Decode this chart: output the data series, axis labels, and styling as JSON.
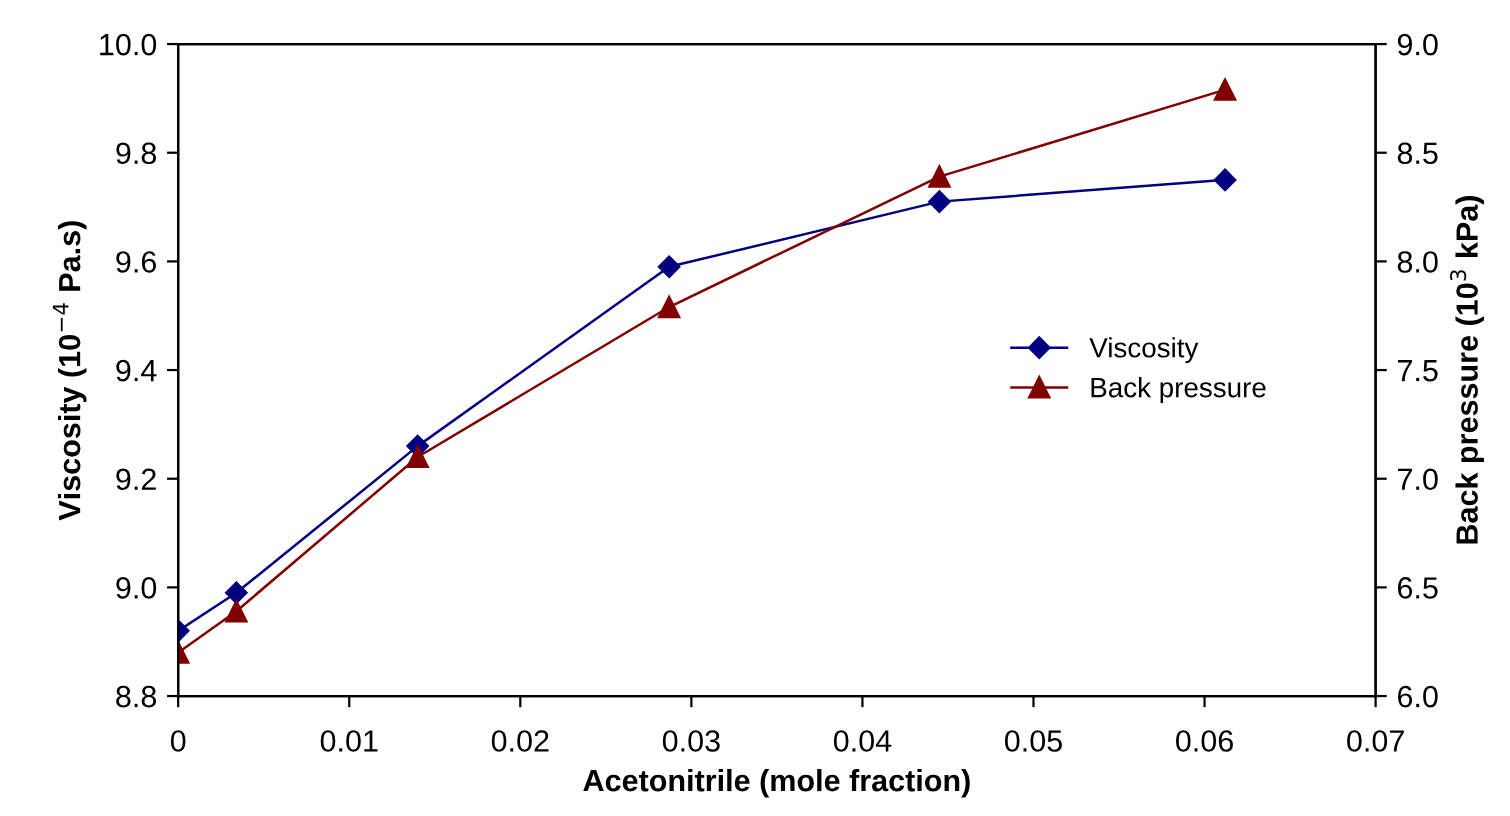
{
  "chart_data": {
    "type": "line",
    "xlabel": "Acetonitrile (mole fraction)",
    "ylabel": "Viscosity (10$^{−4}$ Pa.s)",
    "y2label": "Back pressure (10$^{3}$ kPa)",
    "series": [
      {
        "name": "Viscosity",
        "color": "#000080",
        "marker": "diamond",
        "x": [
          0,
          0.0034,
          0.014,
          0.0287,
          0.0445,
          0.0612
        ],
        "values": [
          8.92,
          8.99,
          9.26,
          9.59,
          9.71,
          9.75
        ]
      },
      {
        "name": "Back pressure",
        "color": "#800000",
        "marker": "triangle",
        "axis": "y2",
        "x": [
          0,
          0.0034,
          0.014,
          0.0287,
          0.0445,
          0.0612
        ],
        "values": [
          6.2,
          6.39,
          7.1,
          7.79,
          8.39,
          8.79
        ]
      }
    ],
    "xlim": [
      0,
      0.07
    ],
    "xticks": [
      0,
      0.01,
      0.02,
      0.03,
      0.04,
      0.05,
      0.06,
      0.07
    ],
    "ylim": [
      8.8,
      10.0
    ],
    "yticks": [
      {
        "value": 8.8,
        "label": "8.8"
      },
      {
        "value": 9.0,
        "label": "9.0"
      },
      {
        "value": 9.2,
        "label": "9.2"
      },
      {
        "value": 9.4,
        "label": "9.4"
      },
      {
        "value": 9.6,
        "label": "9.6"
      },
      {
        "value": 9.8,
        "label": "9.8"
      },
      {
        "value": 10.0,
        "label": "10.0"
      }
    ],
    "y2lim": [
      6.0,
      9.0
    ],
    "y2ticks": [
      {
        "value": 6.0,
        "label": "6.0"
      },
      {
        "value": 6.5,
        "label": "6.5"
      },
      {
        "value": 7.0,
        "label": "7.0"
      },
      {
        "value": 7.5,
        "label": "7.5"
      },
      {
        "value": 8.0,
        "label": "8.0"
      },
      {
        "value": 8.5,
        "label": "8.5"
      },
      {
        "value": 9.0,
        "label": "9.0"
      }
    ],
    "grid": false,
    "legend": "right",
    "line_style": "solid"
  }
}
